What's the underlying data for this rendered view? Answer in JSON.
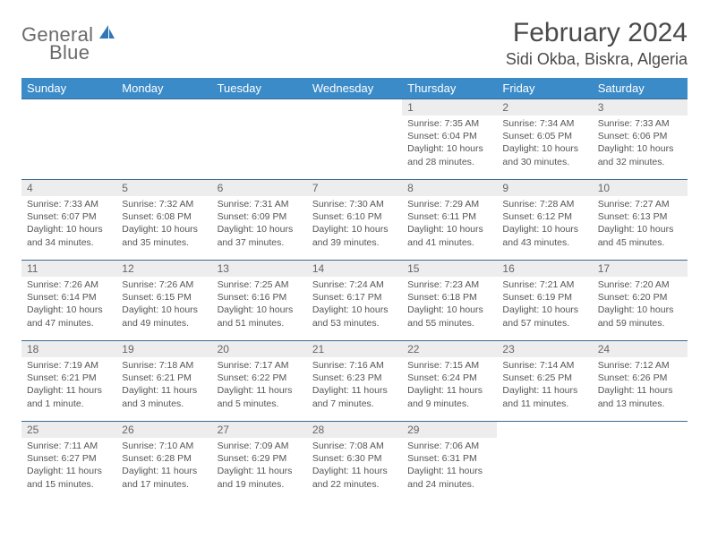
{
  "brand": {
    "name_part1": "General",
    "name_part2": "Blue"
  },
  "title": {
    "month": "February 2024",
    "location": "Sidi Okba, Biskra, Algeria"
  },
  "colors": {
    "header_bg": "#3b8bc8",
    "header_text": "#ffffff",
    "daynum_bg": "#ededed",
    "border": "#3b6a94",
    "text": "#555555",
    "brand_gray": "#6a6a6a",
    "brand_blue": "#2f77b6"
  },
  "weekdays": [
    "Sunday",
    "Monday",
    "Tuesday",
    "Wednesday",
    "Thursday",
    "Friday",
    "Saturday"
  ],
  "weeks": [
    [
      null,
      null,
      null,
      null,
      {
        "n": "1",
        "sr": "Sunrise: 7:35 AM",
        "ss": "Sunset: 6:04 PM",
        "dl": "Daylight: 10 hours and 28 minutes."
      },
      {
        "n": "2",
        "sr": "Sunrise: 7:34 AM",
        "ss": "Sunset: 6:05 PM",
        "dl": "Daylight: 10 hours and 30 minutes."
      },
      {
        "n": "3",
        "sr": "Sunrise: 7:33 AM",
        "ss": "Sunset: 6:06 PM",
        "dl": "Daylight: 10 hours and 32 minutes."
      }
    ],
    [
      {
        "n": "4",
        "sr": "Sunrise: 7:33 AM",
        "ss": "Sunset: 6:07 PM",
        "dl": "Daylight: 10 hours and 34 minutes."
      },
      {
        "n": "5",
        "sr": "Sunrise: 7:32 AM",
        "ss": "Sunset: 6:08 PM",
        "dl": "Daylight: 10 hours and 35 minutes."
      },
      {
        "n": "6",
        "sr": "Sunrise: 7:31 AM",
        "ss": "Sunset: 6:09 PM",
        "dl": "Daylight: 10 hours and 37 minutes."
      },
      {
        "n": "7",
        "sr": "Sunrise: 7:30 AM",
        "ss": "Sunset: 6:10 PM",
        "dl": "Daylight: 10 hours and 39 minutes."
      },
      {
        "n": "8",
        "sr": "Sunrise: 7:29 AM",
        "ss": "Sunset: 6:11 PM",
        "dl": "Daylight: 10 hours and 41 minutes."
      },
      {
        "n": "9",
        "sr": "Sunrise: 7:28 AM",
        "ss": "Sunset: 6:12 PM",
        "dl": "Daylight: 10 hours and 43 minutes."
      },
      {
        "n": "10",
        "sr": "Sunrise: 7:27 AM",
        "ss": "Sunset: 6:13 PM",
        "dl": "Daylight: 10 hours and 45 minutes."
      }
    ],
    [
      {
        "n": "11",
        "sr": "Sunrise: 7:26 AM",
        "ss": "Sunset: 6:14 PM",
        "dl": "Daylight: 10 hours and 47 minutes."
      },
      {
        "n": "12",
        "sr": "Sunrise: 7:26 AM",
        "ss": "Sunset: 6:15 PM",
        "dl": "Daylight: 10 hours and 49 minutes."
      },
      {
        "n": "13",
        "sr": "Sunrise: 7:25 AM",
        "ss": "Sunset: 6:16 PM",
        "dl": "Daylight: 10 hours and 51 minutes."
      },
      {
        "n": "14",
        "sr": "Sunrise: 7:24 AM",
        "ss": "Sunset: 6:17 PM",
        "dl": "Daylight: 10 hours and 53 minutes."
      },
      {
        "n": "15",
        "sr": "Sunrise: 7:23 AM",
        "ss": "Sunset: 6:18 PM",
        "dl": "Daylight: 10 hours and 55 minutes."
      },
      {
        "n": "16",
        "sr": "Sunrise: 7:21 AM",
        "ss": "Sunset: 6:19 PM",
        "dl": "Daylight: 10 hours and 57 minutes."
      },
      {
        "n": "17",
        "sr": "Sunrise: 7:20 AM",
        "ss": "Sunset: 6:20 PM",
        "dl": "Daylight: 10 hours and 59 minutes."
      }
    ],
    [
      {
        "n": "18",
        "sr": "Sunrise: 7:19 AM",
        "ss": "Sunset: 6:21 PM",
        "dl": "Daylight: 11 hours and 1 minute."
      },
      {
        "n": "19",
        "sr": "Sunrise: 7:18 AM",
        "ss": "Sunset: 6:21 PM",
        "dl": "Daylight: 11 hours and 3 minutes."
      },
      {
        "n": "20",
        "sr": "Sunrise: 7:17 AM",
        "ss": "Sunset: 6:22 PM",
        "dl": "Daylight: 11 hours and 5 minutes."
      },
      {
        "n": "21",
        "sr": "Sunrise: 7:16 AM",
        "ss": "Sunset: 6:23 PM",
        "dl": "Daylight: 11 hours and 7 minutes."
      },
      {
        "n": "22",
        "sr": "Sunrise: 7:15 AM",
        "ss": "Sunset: 6:24 PM",
        "dl": "Daylight: 11 hours and 9 minutes."
      },
      {
        "n": "23",
        "sr": "Sunrise: 7:14 AM",
        "ss": "Sunset: 6:25 PM",
        "dl": "Daylight: 11 hours and 11 minutes."
      },
      {
        "n": "24",
        "sr": "Sunrise: 7:12 AM",
        "ss": "Sunset: 6:26 PM",
        "dl": "Daylight: 11 hours and 13 minutes."
      }
    ],
    [
      {
        "n": "25",
        "sr": "Sunrise: 7:11 AM",
        "ss": "Sunset: 6:27 PM",
        "dl": "Daylight: 11 hours and 15 minutes."
      },
      {
        "n": "26",
        "sr": "Sunrise: 7:10 AM",
        "ss": "Sunset: 6:28 PM",
        "dl": "Daylight: 11 hours and 17 minutes."
      },
      {
        "n": "27",
        "sr": "Sunrise: 7:09 AM",
        "ss": "Sunset: 6:29 PM",
        "dl": "Daylight: 11 hours and 19 minutes."
      },
      {
        "n": "28",
        "sr": "Sunrise: 7:08 AM",
        "ss": "Sunset: 6:30 PM",
        "dl": "Daylight: 11 hours and 22 minutes."
      },
      {
        "n": "29",
        "sr": "Sunrise: 7:06 AM",
        "ss": "Sunset: 6:31 PM",
        "dl": "Daylight: 11 hours and 24 minutes."
      },
      null,
      null
    ]
  ]
}
